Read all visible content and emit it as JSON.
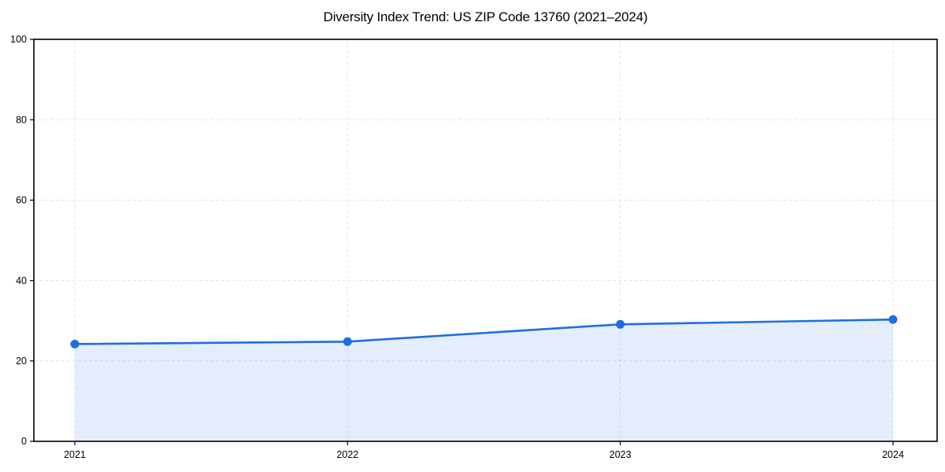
{
  "chart_data": {
    "type": "area",
    "title": "Diversity Index Trend: US ZIP Code 13760 (2021–2024)",
    "categories": [
      "2021",
      "2022",
      "2023",
      "2024"
    ],
    "series": [
      {
        "name": "Diversity Index",
        "values": [
          24.2,
          24.8,
          29.1,
          30.3
        ]
      }
    ],
    "xlabel": "",
    "ylabel": "",
    "ylim": [
      0,
      100
    ],
    "yticks": [
      0,
      20,
      40,
      60,
      80,
      100
    ],
    "grid": true,
    "grid_style": "dashed",
    "legend_position": "none",
    "colors": {
      "line": "#1f6ee0",
      "marker": "#1f6ee0",
      "fill": "rgba(31,110,224,0.12)",
      "grid": "#e3e3e3",
      "axis": "#000000",
      "tick_text": "#000000",
      "background": "#ffffff"
    }
  }
}
